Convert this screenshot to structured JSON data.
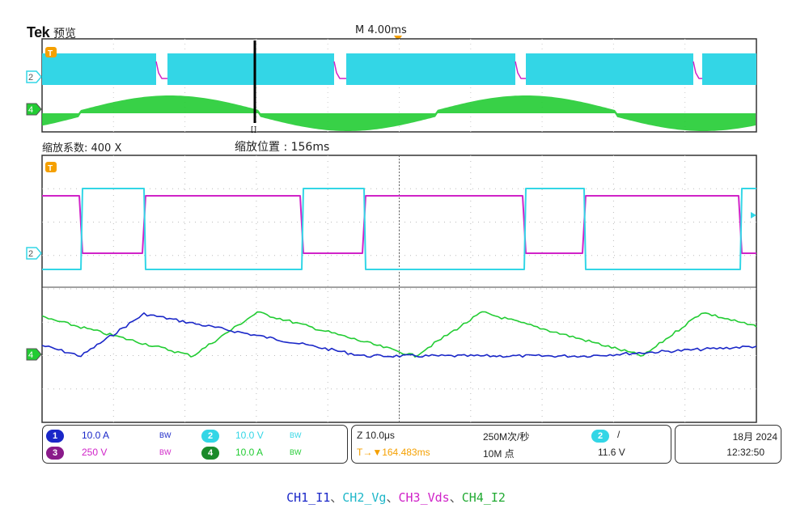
{
  "header": {
    "logo": "Tek",
    "mode": "预览",
    "timebase": "M 4.00ms"
  },
  "zoom": {
    "factor_label": "缩放系数: 400 X",
    "position_label": "缩放位置 :  156ms"
  },
  "markers": {
    "trigger": "T",
    "ch2": "2",
    "ch4": "4",
    "zoom_cursor": "[]"
  },
  "colors": {
    "ch1": "#1a27c8",
    "ch2": "#33d6e6",
    "ch3": "#d023c8",
    "ch4": "#22cc33",
    "trigger": "#f5a000"
  },
  "statusbar": {
    "ch1": {
      "num": "1",
      "scale": "10.0 A",
      "bw": "BW"
    },
    "ch3": {
      "num": "3",
      "scale": "250 V",
      "bw": "BW"
    },
    "ch2": {
      "num": "2",
      "scale": "10.0 V",
      "bw": "BW"
    },
    "ch4": {
      "num": "4",
      "scale": "10.0 A",
      "bw": "BW"
    },
    "zoom_time": "Z 10.0μs",
    "trigger_pos": "T→▼164.483ms",
    "sample_rate": "250M次/秒",
    "record_length": "10M 点",
    "trig_source": "2",
    "trig_slope": "/",
    "trig_level": "11.6 V",
    "date": "18月 2024",
    "time": "12:32:50"
  },
  "caption": {
    "ch1": "CH1_I1",
    "sep1": "、",
    "ch2": "CH2_Vg",
    "sep2": "、",
    "ch3": "CH3_Vds",
    "sep3": "、",
    "ch4": "CH4_I2"
  }
}
